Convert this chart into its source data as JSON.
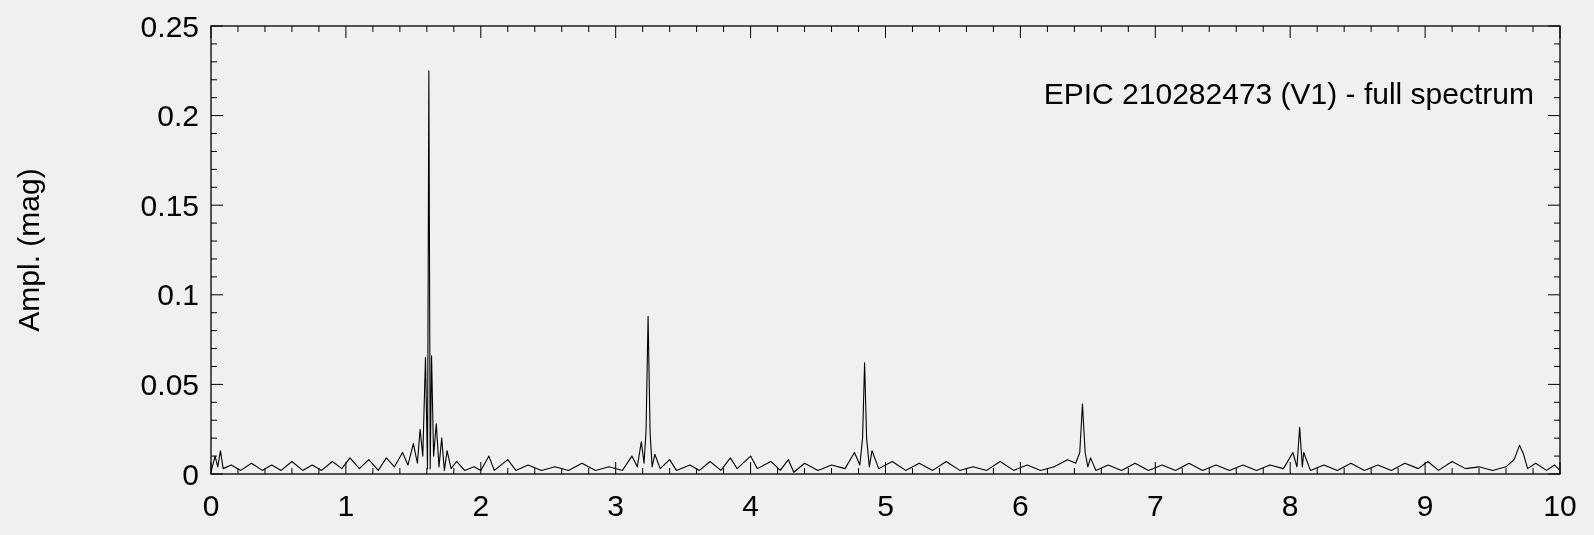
{
  "chart_data": {
    "type": "line",
    "ylabel": "Ampl. (mag)",
    "annotations": [
      "EPIC 210282473 (V1) - full spectrum"
    ],
    "xlim": [
      0,
      10
    ],
    "xticks": [
      0,
      1,
      2,
      3,
      4,
      5,
      6,
      7,
      8,
      9,
      10
    ],
    "ylim": [
      0,
      0.25
    ],
    "yticks": [
      0,
      0.05,
      0.1,
      0.15,
      0.2,
      0.25
    ],
    "grid": false,
    "marker": "none",
    "line_style": "solid",
    "series": [
      {
        "color": "#000000",
        "x": [
          0,
          0.03,
          0.05,
          0.07,
          0.09,
          0.15,
          0.22,
          0.3,
          0.38,
          0.45,
          0.52,
          0.6,
          0.68,
          0.75,
          0.82,
          0.9,
          0.97,
          1.03,
          1.1,
          1.17,
          1.24,
          1.3,
          1.36,
          1.42,
          1.46,
          1.5,
          1.53,
          1.55,
          1.57,
          1.59,
          1.605,
          1.615,
          1.625,
          1.635,
          1.65,
          1.67,
          1.69,
          1.71,
          1.73,
          1.75,
          1.78,
          1.82,
          1.88,
          1.95,
          2.0,
          2.06,
          2.1,
          2.2,
          2.26,
          2.35,
          2.45,
          2.55,
          2.65,
          2.75,
          2.85,
          2.95,
          3.05,
          3.12,
          3.16,
          3.19,
          3.21,
          3.225,
          3.24,
          3.255,
          3.27,
          3.29,
          3.33,
          3.4,
          3.45,
          3.55,
          3.62,
          3.7,
          3.78,
          3.85,
          3.9,
          4.0,
          4.05,
          4.15,
          4.22,
          4.28,
          4.32,
          4.4,
          4.5,
          4.6,
          4.7,
          4.77,
          4.81,
          4.83,
          4.845,
          4.86,
          4.88,
          4.9,
          4.95,
          5.05,
          5.15,
          5.25,
          5.35,
          5.45,
          5.55,
          5.65,
          5.75,
          5.85,
          5.95,
          6.05,
          6.15,
          6.25,
          6.35,
          6.41,
          6.44,
          6.46,
          6.48,
          6.5,
          6.52,
          6.56,
          6.65,
          6.75,
          6.85,
          6.95,
          7.05,
          7.15,
          7.25,
          7.35,
          7.45,
          7.55,
          7.65,
          7.75,
          7.85,
          7.95,
          8.02,
          8.05,
          8.07,
          8.09,
          8.1,
          8.15,
          8.25,
          8.35,
          8.45,
          8.55,
          8.65,
          8.75,
          8.85,
          8.95,
          9.02,
          9.1,
          9.2,
          9.3,
          9.4,
          9.5,
          9.6,
          9.66,
          9.7,
          9.73,
          9.76,
          9.82,
          9.9,
          9.96,
          10
        ],
        "values": [
          0.001,
          0.01,
          0.004,
          0.013,
          0.003,
          0.005,
          0.002,
          0.006,
          0.002,
          0.005,
          0.002,
          0.007,
          0.002,
          0.005,
          0.002,
          0.007,
          0.003,
          0.009,
          0.003,
          0.008,
          0.002,
          0.009,
          0.004,
          0.012,
          0.005,
          0.017,
          0.006,
          0.025,
          0.01,
          0.065,
          0.003,
          0.225,
          0.003,
          0.066,
          0.01,
          0.028,
          0.004,
          0.02,
          0.002,
          0.013,
          0.003,
          0.007,
          0.002,
          0.004,
          0.002,
          0.01,
          0.002,
          0.008,
          0.002,
          0.005,
          0.002,
          0.004,
          0.002,
          0.006,
          0.002,
          0.004,
          0.002,
          0.01,
          0.004,
          0.018,
          0.006,
          0.024,
          0.088,
          0.023,
          0.004,
          0.011,
          0.003,
          0.008,
          0.002,
          0.005,
          0.002,
          0.007,
          0.002,
          0.009,
          0.003,
          0.01,
          0.003,
          0.007,
          0.002,
          0.008,
          0.001,
          0.006,
          0.002,
          0.005,
          0.003,
          0.012,
          0.005,
          0.02,
          0.062,
          0.02,
          0.004,
          0.013,
          0.003,
          0.007,
          0.002,
          0.006,
          0.002,
          0.007,
          0.002,
          0.004,
          0.002,
          0.007,
          0.002,
          0.005,
          0.002,
          0.004,
          0.008,
          0.006,
          0.012,
          0.039,
          0.012,
          0.004,
          0.009,
          0.002,
          0.005,
          0.002,
          0.006,
          0.002,
          0.005,
          0.002,
          0.006,
          0.002,
          0.005,
          0.002,
          0.005,
          0.002,
          0.005,
          0.003,
          0.012,
          0.004,
          0.026,
          0.004,
          0.012,
          0.002,
          0.005,
          0.002,
          0.006,
          0.002,
          0.005,
          0.002,
          0.006,
          0.003,
          0.007,
          0.002,
          0.007,
          0.003,
          0.004,
          0.002,
          0.004,
          0.008,
          0.016,
          0.011,
          0.003,
          0.006,
          0.002,
          0.005,
          0.002
        ]
      }
    ]
  }
}
